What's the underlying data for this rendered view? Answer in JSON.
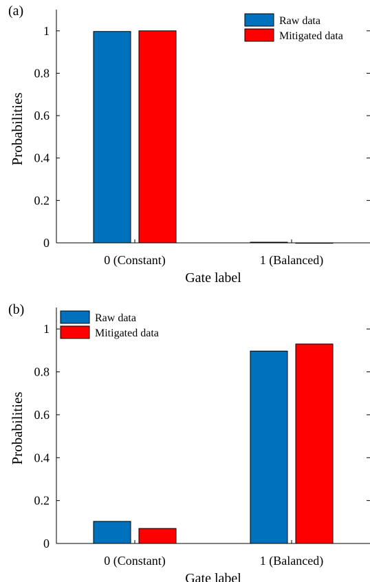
{
  "chart_data": [
    {
      "type": "bar",
      "panel_label": "(a)",
      "categories": [
        "0 (Constant)",
        "1 (Balanced)"
      ],
      "series": [
        {
          "name": "Raw data",
          "color": "#0072BD",
          "values": [
            0.997,
            0.003
          ]
        },
        {
          "name": "Mitigated data",
          "color": "#FF0000",
          "values": [
            1.0,
            0.0
          ]
        }
      ],
      "xlabel": "Gate label",
      "ylabel": "Probabilities",
      "ylim": [
        0,
        1.1
      ],
      "yticks": [
        0,
        0.2,
        0.4,
        0.6,
        0.8,
        1
      ],
      "ytick_labels": [
        "0",
        "0.2",
        "0.4",
        "0.6",
        "0.8",
        "1"
      ],
      "grid": false,
      "legend_position": "top-right"
    },
    {
      "type": "bar",
      "panel_label": "(b)",
      "categories": [
        "0 (Constant)",
        "1 (Balanced)"
      ],
      "series": [
        {
          "name": "Raw data",
          "color": "#0072BD",
          "values": [
            0.103,
            0.897
          ]
        },
        {
          "name": "Mitigated data",
          "color": "#FF0000",
          "values": [
            0.07,
            0.93
          ]
        }
      ],
      "xlabel": "Gate label",
      "ylabel": "Probabilities",
      "ylim": [
        0,
        1.1
      ],
      "yticks": [
        0,
        0.2,
        0.4,
        0.6,
        0.8,
        1
      ],
      "ytick_labels": [
        "0",
        "0.2",
        "0.4",
        "0.6",
        "0.8",
        "1"
      ],
      "grid": false,
      "legend_position": "top-left"
    }
  ]
}
